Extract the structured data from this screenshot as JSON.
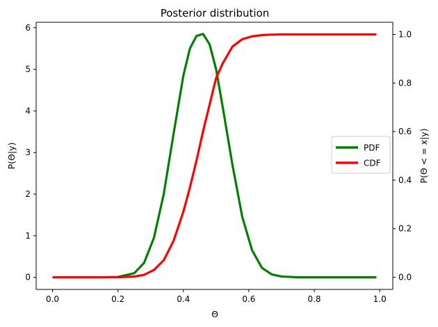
{
  "chart_data": {
    "type": "line",
    "title": "Posterior distribution",
    "xlabel": "Θ",
    "ylabel": "P(Θ|y)",
    "y2label": "P(Θ < = x|y)",
    "xlim": [
      -0.05,
      1.04
    ],
    "ylim": [
      -0.29,
      6.13
    ],
    "y2lim": [
      -0.05,
      1.05
    ],
    "xticks": [
      0.0,
      0.2,
      0.4,
      0.6,
      0.8,
      1.0
    ],
    "xtick_labels": [
      "0.0",
      "0.2",
      "0.4",
      "0.6",
      "0.8",
      "1.0"
    ],
    "yticks": [
      0,
      1,
      2,
      3,
      4,
      5,
      6
    ],
    "ytick_labels": [
      "0",
      "1",
      "2",
      "3",
      "4",
      "5",
      "6"
    ],
    "y2ticks": [
      0.0,
      0.2,
      0.4,
      0.6,
      0.8,
      1.0
    ],
    "y2tick_labels": [
      "0.0",
      "0.2",
      "0.4",
      "0.6",
      "0.8",
      "1.0"
    ],
    "grid": false,
    "legend_position": "center-right",
    "x": [
      0.0,
      0.05,
      0.1,
      0.15,
      0.2,
      0.25,
      0.28,
      0.31,
      0.34,
      0.37,
      0.4,
      0.42,
      0.44,
      0.46,
      0.48,
      0.5,
      0.52,
      0.55,
      0.58,
      0.61,
      0.64,
      0.67,
      0.7,
      0.75,
      0.8,
      0.85,
      0.9,
      0.95,
      0.99
    ],
    "series": [
      {
        "name": "PDF",
        "axis": "left",
        "color": "#008000",
        "values": [
          0.0,
          0.0,
          0.0,
          0.0,
          0.01,
          0.1,
          0.35,
          0.95,
          2.0,
          3.45,
          4.85,
          5.5,
          5.8,
          5.85,
          5.6,
          5.0,
          4.1,
          2.7,
          1.45,
          0.65,
          0.23,
          0.07,
          0.02,
          0.0,
          0.0,
          0.0,
          0.0,
          0.0,
          0.0
        ]
      },
      {
        "name": "CDF",
        "axis": "right",
        "color": "#ff0000",
        "values": [
          0.0,
          0.0,
          0.0,
          0.0,
          0.0,
          0.003,
          0.01,
          0.03,
          0.07,
          0.15,
          0.27,
          0.37,
          0.48,
          0.6,
          0.71,
          0.82,
          0.88,
          0.95,
          0.98,
          0.992,
          0.997,
          0.999,
          1.0,
          1.0,
          1.0,
          1.0,
          1.0,
          1.0,
          1.0
        ]
      }
    ]
  }
}
